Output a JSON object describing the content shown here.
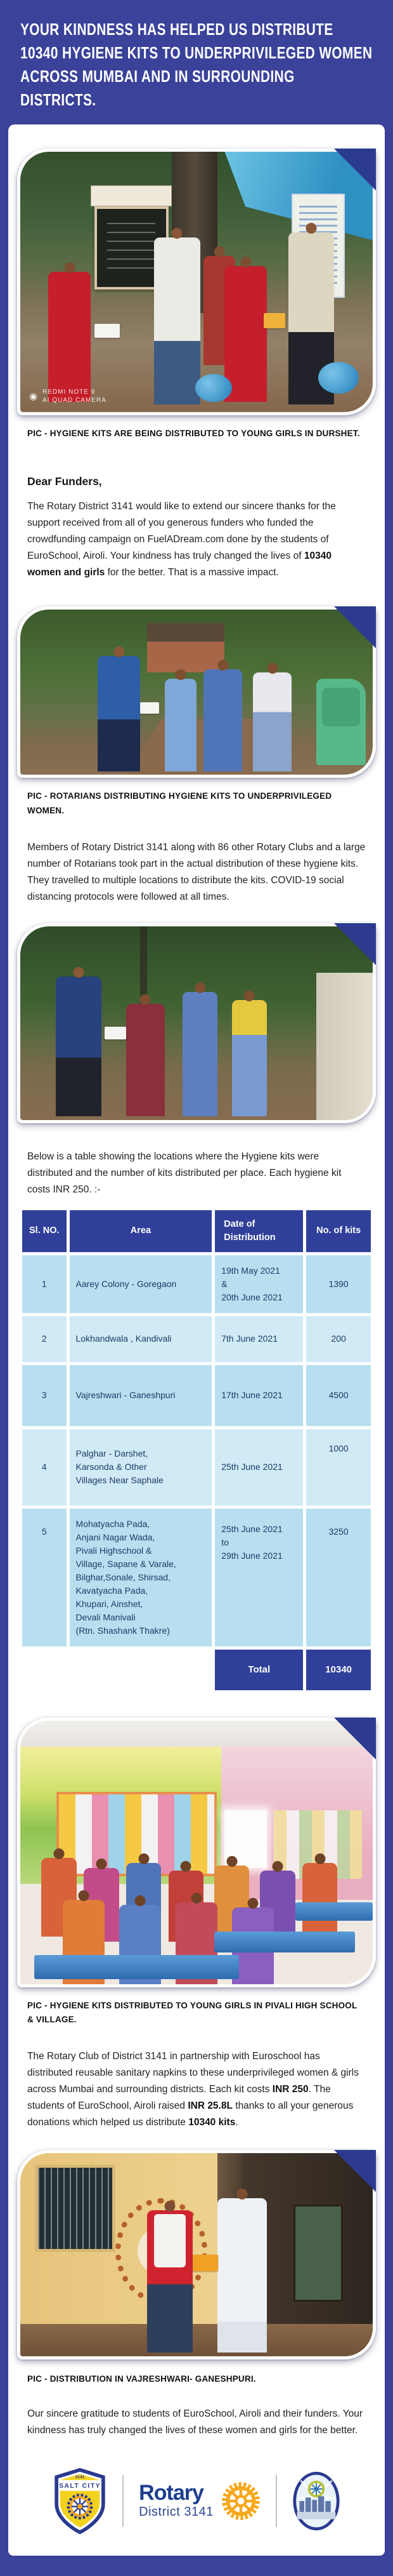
{
  "header": {
    "headline": "YOUR KINDNESS HAS HELPED US DISTRIBUTE 10340 HYGIENE KITS TO UNDERPRIVILEGED WOMEN ACROSS MUMBAI AND IN SURROUNDING DISTRICTS."
  },
  "photos": {
    "p1": {
      "caption": "PIC - HYGIENE KITS ARE BEING DISTRIBUTED TO YOUNG GIRLS IN DURSHET.",
      "watermark_line1": "REDMI NOTE 9",
      "watermark_line2": "AI QUAD CAMERA"
    },
    "p2": {
      "caption": "PIC - ROTARIANS DISTRIBUTING HYGIENE KITS TO UNDERPRIVILEGED WOMEN."
    },
    "p4": {
      "caption": "PIC - HYGIENE KITS DISTRIBUTED TO YOUNG GIRLS IN PIVALI HIGH SCHOOL & VILLAGE."
    },
    "p5": {
      "caption": "PIC - DISTRIBUTION IN VAJRESHWARI- GANESHPURI."
    }
  },
  "letter": {
    "salutation": "Dear Funders,",
    "para1_runs": [
      {
        "t": "The Rotary District 3141 would like to extend our sincere thanks for the support received from all of you generous funders who funded the crowdfunding campaign on FuelADream.com done by the students of EuroSchool, Airoli. Your kindness has truly changed the lives of ",
        "b": false
      },
      {
        "t": "10340 women and girls",
        "b": true
      },
      {
        "t": " for the better. That is a massive impact.",
        "b": false
      }
    ],
    "para2": "Members of Rotary District 3141 along with 86 other Rotary Clubs and a large number of Rotarians took part in the actual distribution of these hygiene kits. They travelled to multiple locations to distribute the kits. COVID-19 social distancing protocols were followed at all times.",
    "table_intro": "Below is a table showing the locations where the Hygiene kits were distributed and the number of kits distributed per place. Each hygiene kit costs INR 250. :-",
    "para4_runs": [
      {
        "t": "The Rotary Club of District 3141 in partnership with Euroschool has distributed reusable sanitary napkins to these underprivileged women & girls across Mumbai and surrounding districts. Each kit costs ",
        "b": false
      },
      {
        "t": "INR 250",
        "b": true
      },
      {
        "t": ". The students of EuroSchool, Airoli raised ",
        "b": false
      },
      {
        "t": "INR 25.8L",
        "b": true
      },
      {
        "t": " thanks to all your generous donations which helped us distribute ",
        "b": false
      },
      {
        "t": "10340 kits",
        "b": true
      },
      {
        "t": ".",
        "b": false
      }
    ],
    "closing": "Our sincere gratitude to students of EuroSchool, Airoli and their funders. Your kindness has truly changed the lives of these women and girls for the better."
  },
  "table": {
    "headers": [
      "Sl. NO.",
      "Area",
      "Date of\nDistribution",
      "No. of kits"
    ],
    "rows": [
      {
        "sl": "1",
        "area": "Aarey Colony - Goregaon",
        "date": "19th May 2021\n&\n20th June 2021",
        "kits": "1390"
      },
      {
        "sl": "2",
        "area": "Lokhandwala , Kandivali",
        "date": "7th June 2021",
        "kits": "200"
      },
      {
        "sl": "3",
        "area": "Vajreshwari - Ganeshpuri",
        "date": "17th June 2021",
        "kits": "4500"
      },
      {
        "sl": "4",
        "area": "Palghar - Darshet,\nKarsonda & Other\nVillages Near Saphale",
        "date": "25th June 2021",
        "kits": "1000"
      },
      {
        "sl": "5",
        "area": "Mohatyacha Pada,\nAnjani Nagar Wada,\nPivali Highschool &\nVillage, Sapane & Varale,\nBilghar,Sonale, Shirsad,\nKavatyacha Pada,\nKhupari, Ainshet,\nDevali Manivali\n(Rtn. Shashank Thakre)",
        "date": "25th June 2021\nto\n29th June 2021",
        "kits": "3250"
      }
    ],
    "total_label": "Total",
    "total_value": "10340"
  },
  "footer": {
    "saltcity_top": "3141",
    "saltcity_name": "SALT CITY",
    "rotary_name": "Rotary",
    "rotary_district": "District 3141"
  },
  "colors": {
    "page_background": "#3A429A",
    "corner_triangle": "#2C3A90",
    "table_header_bg": "#30409A",
    "table_row_dark": "#B7DFF0",
    "table_row_light": "#D0EAF6",
    "table_text": "#1d3b66",
    "rotary_gold": "#F7A81B",
    "rotary_navy": "#1d3e8f"
  }
}
